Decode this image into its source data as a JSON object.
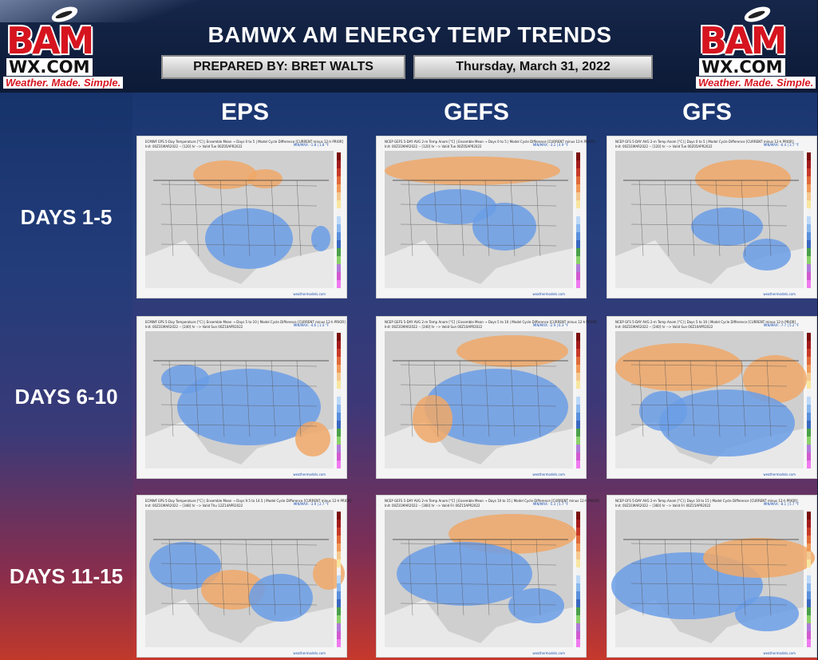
{
  "title": "BAMWX AM ENERGY TEMP TRENDS",
  "prepared_by": "PREPARED BY: BRET WALTS",
  "date": "Thursday, March 31, 2022",
  "logo": {
    "main": "BAM",
    "sub": "WX.COM",
    "tagline": "Weather. Made. Simple."
  },
  "columns": [
    "EPS",
    "GEFS",
    "GFS"
  ],
  "rows": [
    "DAYS 1-5",
    "DAYS 6-10",
    "DAYS 11-15"
  ],
  "colors": {
    "cold": "#6b9ee6",
    "warm": "#f0a868",
    "neutral": "#cfcfcf",
    "accent_red": "#d6141f"
  },
  "panels": [
    [
      {
        "header": "ECMWF EPS 5-Day Temperature [°C] | Ensemble Mean → Days 0 to 5 | Model Cycle Difference [CURRENT minus 12-h PRIOR]",
        "init": "Init: 00Z31MAR2022 -- [120] hr --> Valid Tue 00Z05APR2022",
        "minmax": "MIN/MAX: -1.8 | 1.8 °F",
        "footer": "weathermodels.com"
      },
      {
        "header": "NCEP GEFS 5-DAY AVG 2-m Temp Anom [°C] | Ensemble Mean → Days 0 to 5 | Model Cycle Difference [CURRENT minus 12-h PRIOR]",
        "init": "Init: 00Z31MAR2022 -- [120] hr --> Valid Tue 00Z05APR2022",
        "minmax": "MIN/MAX: -3.2 | 4.9 °F",
        "footer": "weathermodels.com"
      },
      {
        "header": "NCEP GFS 5-DAY AVG 2-m Temp Anom [°C] | Days 0 to 5 | Model Cycle Difference [CURRENT minus 12-h PRIOR]",
        "init": "Init: 00Z31MAR2022 -- [120] hr --> Valid Tue 00Z05APR2022",
        "minmax": "MIN/MAX: -6.4 | 3.7 °F",
        "footer": "weathermodels.com"
      }
    ],
    [
      {
        "header": "ECMWF EPS 5-Day Temperature [°C] | Ensemble Mean → Days 5 to 10 | Model Cycle Difference [CURRENT minus 12-h PRIOR]",
        "init": "Init: 00Z31MAR2022 -- [240] hr --> Valid Sun 00Z10APR2022",
        "minmax": "MIN/MAX: -4.6 | 1.4 °F",
        "footer": "weathermodels.com"
      },
      {
        "header": "NCEP GEFS 5-DAY AVG 2-m Temp Anom [°C] | Ensemble Mean → Days 5 to 10 | Model Cycle Difference [CURRENT minus 12-h PRIOR]",
        "init": "Init: 00Z31MAR2022 -- [240] hr --> Valid Sun 00Z10APR2022",
        "minmax": "MIN/MAX: -2.9 | 6.3 °F",
        "footer": "weathermodels.com"
      },
      {
        "header": "NCEP GFS 5-DAY AVG 2-m Temp Anom [°C] | Days 5 to 10 | Model Cycle Difference [CURRENT minus 12-h PRIOR]",
        "init": "Init: 00Z31MAR2022 -- [240] hr --> Valid Sun 00Z10APR2022",
        "minmax": "MIN/MAX: -7.7 | 5.2 °F",
        "footer": "weathermodels.com"
      }
    ],
    [
      {
        "header": "ECMWF EPS 5-Day Temperature [°C] | Ensemble Mean → Days 9.5 to 14.5 | Model Cycle Difference [CURRENT minus 12-h PRIOR]",
        "init": "Init: 00Z31MAR2022 -- [348] hr --> Valid Thu 12Z14APR2022",
        "minmax": "MIN/MAX: -3.9 | 2.7 °F",
        "footer": "weathermodels.com"
      },
      {
        "header": "NCEP GEFS 5-DAY AVG 2-m Temp Anom [°C] | Ensemble Mean → Days 10 to 15 | Model Cycle Difference [CURRENT minus 12-h PRIOR]",
        "init": "Init: 00Z31MAR2022 -- [360] hr --> Valid Fri 00Z15APR2022",
        "minmax": "MIN/MAX: -5.3 | 5.7 °F",
        "footer": "weathermodels.com"
      },
      {
        "header": "NCEP GFS 5-DAY AVG 2-m Temp Anom [°C] | Days 10 to 15 | Model Cycle Difference [CURRENT minus 12-h PRIOR]",
        "init": "Init: 00Z31MAR2022 -- [360] hr --> Valid Fri 00Z15APR2022",
        "minmax": "MIN/MAX: -8.1 | 5.7 °F",
        "footer": "weathermodels.com"
      }
    ]
  ]
}
